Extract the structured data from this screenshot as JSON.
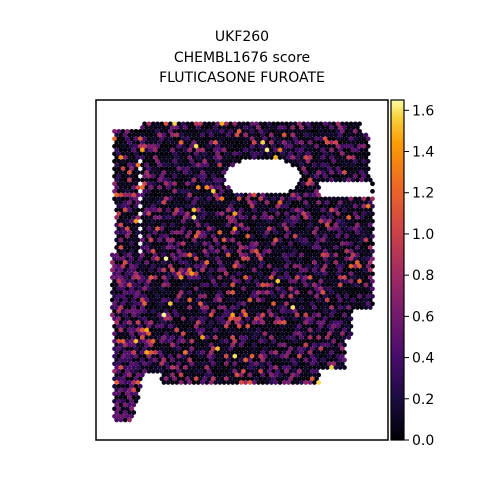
{
  "chart_data": {
    "type": "scatter",
    "title_lines": [
      "UKF260",
      "CHEMBL1676 score",
      "FLUTICASONE FUROATE"
    ],
    "xlabel": "",
    "ylabel": "",
    "axes_ticks_visible": false,
    "colorbar": {
      "colormap": "inferno",
      "range": [
        0.0,
        1.65
      ],
      "ticks": [
        0.0,
        0.2,
        0.4,
        0.6,
        0.8,
        1.0,
        1.2,
        1.4,
        1.6
      ],
      "tick_labels": [
        "0.0",
        "0.2",
        "0.4",
        "0.6",
        "0.8",
        "1.0",
        "1.2",
        "1.4",
        "1.6"
      ]
    },
    "value_distribution_note_free": true,
    "point_seed": 260
  }
}
